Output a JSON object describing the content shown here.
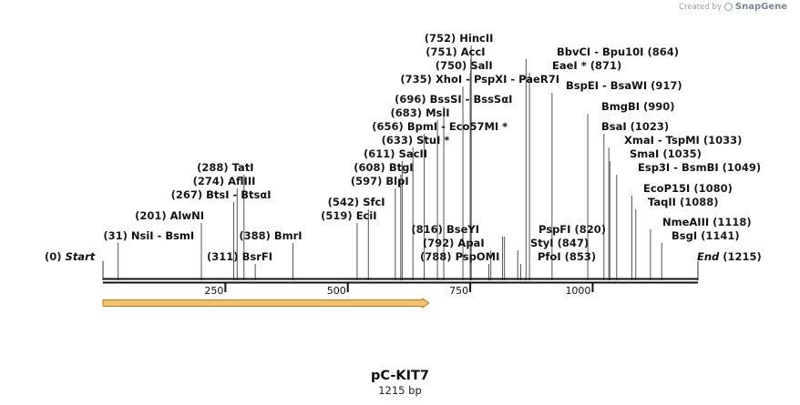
{
  "credit": {
    "prefix": "Created by",
    "brand": "SnapGene"
  },
  "title": "pC-KIT7",
  "length_label": "1215 bp",
  "length_bp": 1215,
  "colors": {
    "feature_fill": "#f5c26b",
    "feature_border": "#c07a16",
    "backbone": "#111111"
  },
  "scale_ticks": [
    "250",
    "500",
    "750",
    "1000"
  ],
  "scale_tick_values": [
    250,
    500,
    750,
    1000
  ],
  "ends": [
    {
      "id": "start",
      "name": "Start",
      "pos_label": "(0)",
      "position": 0
    },
    {
      "id": "end",
      "name": "End",
      "pos_label": "(1215)",
      "position": 1215
    }
  ],
  "features": [
    {
      "id": "orf-arrow",
      "start": 0,
      "end": 662,
      "direction": "forward"
    }
  ],
  "sites": [
    {
      "id": "nsii",
      "label": "NsiI  -  BsmI",
      "pos_label": "(31)",
      "position": 31
    },
    {
      "id": "alwni",
      "label": "AlwNI",
      "pos_label": "(201)",
      "position": 201
    },
    {
      "id": "btsi",
      "label": "BtsI  -  BtsαI",
      "pos_label": "(267)",
      "position": 267
    },
    {
      "id": "aflii",
      "label": "AflIII",
      "pos_label": "(274)",
      "position": 274
    },
    {
      "id": "tati",
      "label": "TatI",
      "pos_label": "(288)",
      "position": 288
    },
    {
      "id": "bsrfi",
      "label": "BsrFI",
      "pos_label": "(311)",
      "position": 311
    },
    {
      "id": "bmri",
      "label": "BmrI",
      "pos_label": "(388)",
      "position": 388
    },
    {
      "id": "ecii",
      "label": "EciI",
      "pos_label": "(519)",
      "position": 519
    },
    {
      "id": "sfci",
      "label": "SfcI",
      "pos_label": "(542)",
      "position": 542
    },
    {
      "id": "blpi",
      "label": "BlpI",
      "pos_label": "(597)",
      "position": 597
    },
    {
      "id": "btgi",
      "label": "BtgI",
      "pos_label": "(608)",
      "position": 608
    },
    {
      "id": "sacii",
      "label": "SacII",
      "pos_label": "(611)",
      "position": 611
    },
    {
      "id": "stui",
      "label": "StuI *",
      "pos_label": "(633)",
      "position": 633
    },
    {
      "id": "bpmi",
      "label": "BpmI  -  Eco57MI *",
      "pos_label": "(656)",
      "position": 656
    },
    {
      "id": "msli",
      "label": "MslI",
      "pos_label": "(683)",
      "position": 683
    },
    {
      "id": "bsssi",
      "label": "BssSI  -  BssSαI",
      "pos_label": "(696)",
      "position": 696
    },
    {
      "id": "xhoi",
      "label": "XhoI  -  PspXI  -  PaeR7I",
      "pos_label": "(735)",
      "position": 735
    },
    {
      "id": "sali",
      "label": "SalI",
      "pos_label": "(750)",
      "position": 750
    },
    {
      "id": "acci",
      "label": "AccI",
      "pos_label": "(751)",
      "position": 751
    },
    {
      "id": "hincii",
      "label": "HincII",
      "pos_label": "(752)",
      "position": 752
    },
    {
      "id": "pspomi",
      "label": "PspOMI",
      "pos_label": "(788)",
      "position": 788
    },
    {
      "id": "apai",
      "label": "ApaI",
      "pos_label": "(792)",
      "position": 792
    },
    {
      "id": "bseyi",
      "label": "BseYI",
      "pos_label": "(816)",
      "position": 816
    },
    {
      "id": "pspfi",
      "label": "PspFI",
      "pos_label": "(820)",
      "position": 820
    },
    {
      "id": "styi",
      "label": "StyI",
      "pos_label": "(847)",
      "position": 847
    },
    {
      "id": "pfoi",
      "label": "PfoI",
      "pos_label": "(853)",
      "position": 853
    },
    {
      "id": "bbvci",
      "label": "BbvCI  -  Bpu10I",
      "pos_label": "(864)",
      "position": 864
    },
    {
      "id": "eaei",
      "label": "EaeI *",
      "pos_label": "(871)",
      "position": 871
    },
    {
      "id": "bspei",
      "label": "BspEI  -  BsaWI",
      "pos_label": "(917)",
      "position": 917
    },
    {
      "id": "bmgbi",
      "label": "BmgBI",
      "pos_label": "(990)",
      "position": 990
    },
    {
      "id": "bsai",
      "label": "BsaI",
      "pos_label": "(1023)",
      "position": 1023
    },
    {
      "id": "xmai",
      "label": "XmaI  -  TspMI",
      "pos_label": "(1033)",
      "position": 1033
    },
    {
      "id": "smai",
      "label": "SmaI",
      "pos_label": "(1035)",
      "position": 1035
    },
    {
      "id": "esp3i",
      "label": "Esp3I  -  BsmBI",
      "pos_label": "(1049)",
      "position": 1049
    },
    {
      "id": "ecop15i",
      "label": "EcoP15I",
      "pos_label": "(1080)",
      "position": 1080
    },
    {
      "id": "taqii",
      "label": "TaqII",
      "pos_label": "(1088)",
      "position": 1088
    },
    {
      "id": "nmeaiii",
      "label": "NmeAIII",
      "pos_label": "(1118)",
      "position": 1118
    },
    {
      "id": "bsgi",
      "label": "BsgI",
      "pos_label": "(1141)",
      "position": 1141
    }
  ]
}
